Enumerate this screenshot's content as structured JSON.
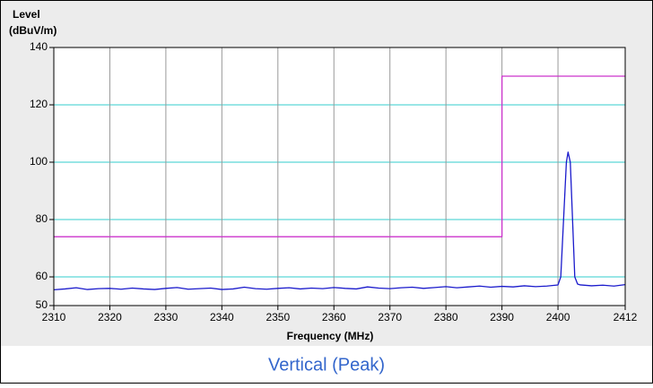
{
  "chart_data": {
    "type": "line",
    "ylabel": [
      "Level",
      "(dBuV/m)"
    ],
    "xlabel": "Frequency (MHz)",
    "caption": "Vertical (Peak)",
    "xlim": [
      2310,
      2412
    ],
    "xticks": [
      2310,
      2320,
      2330,
      2340,
      2350,
      2360,
      2370,
      2380,
      2390,
      2400,
      2412
    ],
    "ylim": [
      50,
      140
    ],
    "yticks": [
      50,
      60,
      80,
      100,
      120,
      140
    ],
    "grid": true,
    "series": [
      {
        "color": "#cc33cc",
        "x": [
          2310,
          2390,
          2390,
          2412
        ],
        "values": [
          74,
          74,
          130,
          130
        ]
      },
      {
        "color": "#1a1acc",
        "x": [
          2310,
          2312,
          2314,
          2316,
          2318,
          2320,
          2322,
          2324,
          2326,
          2328,
          2330,
          2332,
          2334,
          2336,
          2338,
          2340,
          2342,
          2344,
          2346,
          2348,
          2350,
          2352,
          2354,
          2356,
          2358,
          2360,
          2362,
          2364,
          2366,
          2368,
          2370,
          2372,
          2374,
          2376,
          2378,
          2380,
          2382,
          2384,
          2386,
          2388,
          2390,
          2392,
          2394,
          2396,
          2398,
          2399,
          2400,
          2400.5,
          2401,
          2401.5,
          2401.8,
          2402.2,
          2402.6,
          2403,
          2403.5,
          2404,
          2406,
          2408,
          2410,
          2412
        ],
        "values": [
          55.5,
          55.8,
          56.2,
          55.6,
          55.9,
          56.0,
          55.7,
          56.1,
          55.8,
          55.6,
          56.0,
          56.3,
          55.7,
          55.9,
          56.1,
          55.6,
          55.8,
          56.4,
          55.9,
          55.7,
          56.0,
          56.2,
          55.8,
          56.1,
          55.9,
          56.3,
          56.0,
          55.8,
          56.5,
          56.1,
          55.9,
          56.2,
          56.4,
          56.0,
          56.3,
          56.6,
          56.2,
          56.5,
          56.8,
          56.4,
          56.7,
          56.5,
          56.9,
          56.6,
          56.8,
          57.0,
          57.2,
          60,
          80,
          100,
          103.5,
          100,
          80,
          60,
          57.5,
          57.2,
          56.9,
          57.1,
          56.8,
          57.3
        ]
      }
    ]
  }
}
